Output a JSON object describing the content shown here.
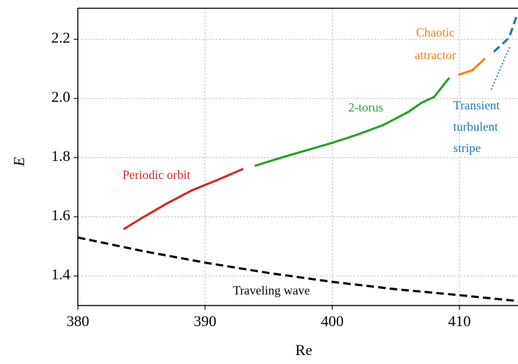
{
  "chart_data": {
    "type": "line",
    "xlabel": "Re",
    "ylabel": "E",
    "xlim": [
      380,
      414.6
    ],
    "ylim": [
      1.3,
      2.305
    ],
    "xticks": [
      380,
      390,
      400,
      410
    ],
    "yticks": [
      {
        "value": 1.4,
        "label": "1.4"
      },
      {
        "value": 1.6,
        "label": "1.6"
      },
      {
        "value": 1.8,
        "label": "1.8"
      },
      {
        "value": 2.0,
        "label": "2.0"
      },
      {
        "value": 2.2,
        "label": "2.2"
      }
    ],
    "grid": true,
    "series": [
      {
        "name": "Traveling wave",
        "color": "#000000",
        "dash": "dashed",
        "x": [
          380,
          385,
          390,
          395,
          400,
          405,
          410,
          414.6
        ],
        "values": [
          1.53,
          1.485,
          1.445,
          1.41,
          1.38,
          1.355,
          1.335,
          1.315
        ]
      },
      {
        "name": "Periodic orbit",
        "color": "#d62728",
        "dash": "solid",
        "x": [
          383.6,
          385,
          387,
          389,
          391,
          393
        ],
        "values": [
          1.558,
          1.595,
          1.645,
          1.69,
          1.725,
          1.762
        ]
      },
      {
        "name": "2-torus",
        "color": "#2ca02c",
        "dash": "solid",
        "x": [
          393.9,
          396,
          398,
          400,
          402,
          404,
          406,
          407,
          408,
          409.2
        ],
        "values": [
          1.772,
          1.8,
          1.825,
          1.85,
          1.878,
          1.91,
          1.955,
          1.985,
          2.005,
          2.07
        ]
      },
      {
        "name": "Chaotic attractor",
        "color": "#ff7f0e",
        "dash": "solid",
        "x": [
          409.9,
          411,
          412
        ],
        "values": [
          2.08,
          2.095,
          2.135
        ]
      },
      {
        "name": "Transient turbulent stripe",
        "color": "#1f77b4",
        "dash": "dashed",
        "x": [
          412.7,
          413.9,
          414.55
        ],
        "values": [
          2.158,
          2.205,
          2.286
        ]
      },
      {
        "color": "#1f77b4",
        "dash": "dotted",
        "x": [
          412.5,
          414.0
        ],
        "values": [
          2.03,
          2.18
        ]
      }
    ]
  }
}
